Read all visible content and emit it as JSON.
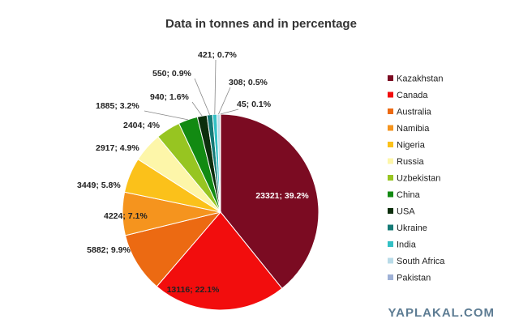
{
  "chart_data": {
    "type": "pie",
    "title": "Data in tonnes and in percentage",
    "slices": [
      {
        "label": "Kazakhstan",
        "value": 23321,
        "display": "23321; 39.2%",
        "color": "#7b0b22"
      },
      {
        "label": "Canada",
        "value": 13116,
        "display": "13116; 22.1%",
        "color": "#f20d0d"
      },
      {
        "label": "Australia",
        "value": 5882,
        "display": "5882; 9.9%",
        "color": "#ec6a12"
      },
      {
        "label": "Namibia",
        "value": 4224,
        "display": "4224; 7.1%",
        "color": "#f5941e"
      },
      {
        "label": "Nigeria",
        "value": 3449,
        "display": "3449; 5.8%",
        "color": "#fbc11a"
      },
      {
        "label": "Russia",
        "value": 2917,
        "display": "2917; 4.9%",
        "color": "#fdf6a9"
      },
      {
        "label": "Uzbekistan",
        "value": 2404,
        "display": "2404; 4%",
        "color": "#97c521"
      },
      {
        "label": "China",
        "value": 1885,
        "display": "1885; 3.2%",
        "color": "#128a12"
      },
      {
        "label": "USA",
        "value": 940,
        "display": "940; 1.6%",
        "color": "#0c2e0c"
      },
      {
        "label": "Ukraine",
        "value": 550,
        "display": "550; 0.9%",
        "color": "#147a76"
      },
      {
        "label": "India",
        "value": 421,
        "display": "421; 0.7%",
        "color": "#33c0c5"
      },
      {
        "label": "South Africa",
        "value": 308,
        "display": "308; 0.5%",
        "color": "#b9dbe8"
      },
      {
        "label": "Pakistan",
        "value": 45,
        "display": "45; 0.1%",
        "color": "#9fb1d6"
      }
    ],
    "legend_position": "right"
  },
  "watermark": "YAPLAKAL.COM"
}
